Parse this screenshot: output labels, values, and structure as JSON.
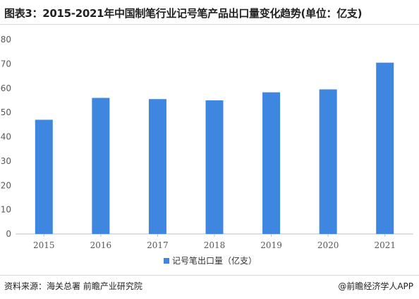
{
  "title": "图表3：2015-2021年中国制笔行业记号笔产品出口量变化趋势(单位：亿支)",
  "source": "资料来源：海关总署 前瞻产业研究院",
  "brand": "@前瞻经济学人APP",
  "colors": {
    "bar": "#3f86e0",
    "axis": "#bfbfbf",
    "tick_text": "#595959"
  },
  "chart_data": {
    "type": "bar",
    "categories": [
      "2015",
      "2016",
      "2017",
      "2018",
      "2019",
      "2020",
      "2021"
    ],
    "series": [
      {
        "name": "记号笔出口量（亿支）",
        "values": [
          47,
          56,
          55.5,
          55,
          58.3,
          59.5,
          70.5
        ]
      }
    ],
    "ylim": [
      0,
      80
    ],
    "yticks": [
      0,
      10,
      20,
      30,
      40,
      50,
      60,
      70,
      80
    ],
    "legend_position": "bottom",
    "grid": false
  }
}
